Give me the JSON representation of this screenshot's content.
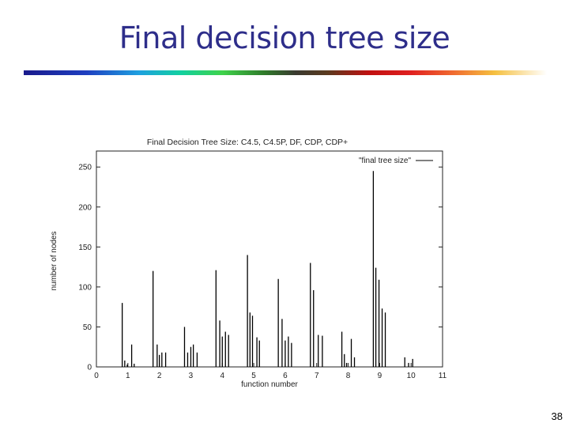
{
  "slide": {
    "title": "Final decision tree size",
    "page_number": "38"
  },
  "chart_data": {
    "type": "bar",
    "title": "Final Decision Tree Size: C4.5, C4.5P, DF, CDP, CDP+",
    "xlabel": "function number",
    "ylabel": "number of nodes",
    "xlim": [
      0,
      11
    ],
    "ylim": [
      0,
      270
    ],
    "xticks": [
      "0",
      "1",
      "2",
      "3",
      "4",
      "5",
      "6",
      "7",
      "8",
      "9",
      "10",
      "11"
    ],
    "yticks": [
      "0",
      "50",
      "100",
      "150",
      "200",
      "250"
    ],
    "legend": {
      "label": "\"final tree size\"",
      "position": "top-right"
    },
    "grid": false,
    "series": [
      {
        "name": "\"final tree size\"",
        "x": [
          0.82,
          0.9,
          0.98,
          1.12,
          1.2,
          1.8,
          1.93,
          2.0,
          2.08,
          2.2,
          2.8,
          2.9,
          3.0,
          3.08,
          3.2,
          3.8,
          3.92,
          4.0,
          4.1,
          4.2,
          4.8,
          4.88,
          4.96,
          5.1,
          5.18,
          5.78,
          5.9,
          6.0,
          6.1,
          6.2,
          6.8,
          6.9,
          7.05,
          7.18,
          7.8,
          7.88,
          7.95,
          8.1,
          8.2,
          8.8,
          8.88,
          8.98,
          9.08,
          9.18,
          9.8,
          9.92,
          10.05
        ],
        "values": [
          80,
          8,
          3,
          28,
          4,
          120,
          28,
          15,
          18,
          18,
          50,
          18,
          25,
          28,
          18,
          121,
          58,
          38,
          44,
          40,
          140,
          68,
          64,
          37,
          33,
          110,
          60,
          33,
          38,
          30,
          130,
          96,
          40,
          39,
          44,
          16,
          5,
          35,
          12,
          245,
          124,
          109,
          73,
          68,
          12,
          5,
          10
        ]
      }
    ]
  }
}
